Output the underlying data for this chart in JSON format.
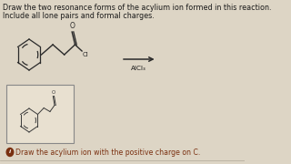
{
  "bg_color": "#ddd5c5",
  "title_line1": "Draw the two resonance forms of the acylium ion formed in this reaction.",
  "title_line2": "Include all lone pairs and formal charges.",
  "hint_text": "Draw the acylium ion with the positive charge on C.",
  "reagent_text": "AlCl₃",
  "text_color": "#1a1a1a",
  "hint_color": "#7a3010",
  "box_bg": "#e8e0d0",
  "box_border": "#888888",
  "title_fontsize": 5.8,
  "hint_fontsize": 5.6,
  "reagent_fontsize": 5.2,
  "line_color": "#2a2a2a",
  "struct_color": "#3a3a3a"
}
